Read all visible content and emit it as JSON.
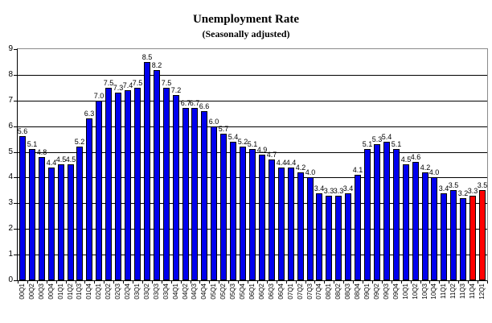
{
  "chart_data": {
    "type": "bar",
    "title": "Unemployment Rate",
    "subtitle": "(Seasonally adjusted)",
    "xlabel": "",
    "ylabel": "",
    "ylim": [
      0,
      9
    ],
    "yticks": [
      0,
      1,
      2,
      3,
      4,
      5,
      6,
      7,
      8,
      9
    ],
    "grid": true,
    "legend": "none",
    "value_labels": true,
    "categories": [
      "00Q1",
      "00Q2",
      "00Q3",
      "00Q4",
      "01Q1",
      "01Q2",
      "01Q3",
      "01Q4",
      "02Q1",
      "02Q2",
      "02Q3",
      "02Q4",
      "03Q1",
      "03Q2",
      "03Q3",
      "03Q4",
      "04Q1",
      "04Q2",
      "04Q3",
      "04Q4",
      "05Q1",
      "05Q2",
      "05Q3",
      "05Q4",
      "06Q1",
      "06Q2",
      "06Q3",
      "06Q4",
      "07Q1",
      "07Q2",
      "07Q3",
      "07Q4",
      "08Q1",
      "08Q2",
      "08Q3",
      "08Q4",
      "09Q1",
      "09Q2",
      "09Q3",
      "09Q4",
      "10Q1",
      "10Q2",
      "10Q3",
      "10Q4",
      "11Q1",
      "11Q2",
      "11Q3",
      "11Q4",
      "12Q1"
    ],
    "values": [
      5.6,
      5.1,
      4.8,
      4.4,
      4.5,
      4.5,
      5.2,
      6.3,
      7.0,
      7.5,
      7.3,
      7.4,
      7.5,
      8.5,
      8.2,
      7.5,
      7.2,
      6.7,
      6.7,
      6.6,
      6.0,
      5.7,
      5.4,
      5.2,
      5.1,
      4.9,
      4.7,
      4.4,
      4.4,
      4.2,
      4.0,
      3.4,
      3.3,
      3.3,
      3.4,
      4.1,
      5.1,
      5.3,
      5.4,
      5.1,
      4.5,
      4.6,
      4.2,
      4.0,
      3.4,
      3.5,
      3.2,
      3.3,
      3.5
    ],
    "highlight_indices": [
      47,
      48
    ],
    "colors": {
      "bar_default": "#0000EE",
      "bar_highlight": "#FF0000",
      "bar_border": "#000000",
      "gridline": "#000000",
      "plot_border": "#8A8A8A",
      "axis": "#000000",
      "text": "#000000"
    }
  }
}
